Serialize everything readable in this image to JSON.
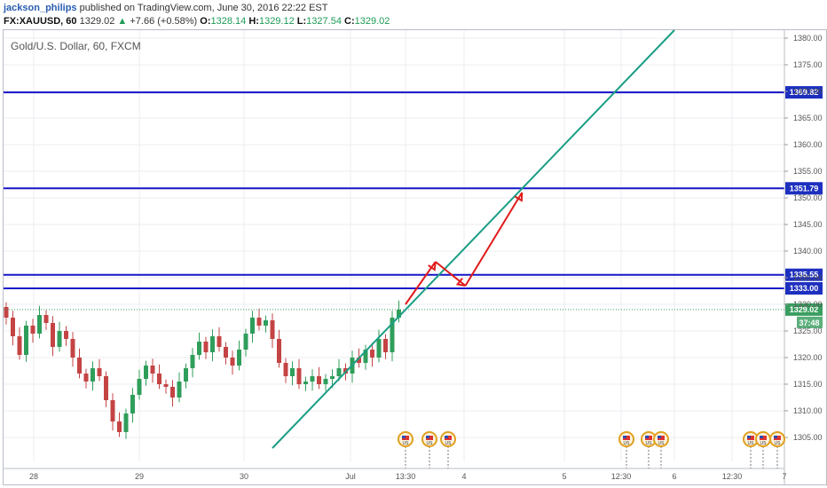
{
  "header": {
    "author": "jackson_philips",
    "published": " published on TradingView.com, June 30, 2016 22:22 EST",
    "symbol": "FX:XAUUSD, 60",
    "price": "1329.02",
    "change": "+7.66 (+0.58%)",
    "o_label": "O:",
    "o_value": "1328.14",
    "h_label": "H:",
    "h_value": "1329.12",
    "l_label": "L:",
    "l_value": "1327.54",
    "c_label": "C:",
    "c_value": "1329.02"
  },
  "colors": {
    "up": "#2f9e5b",
    "down": "#c44444",
    "hline": "#1515c8",
    "trend": "#1a9e85",
    "arrow": "#e01b1b",
    "tag_blue": "#1d2fbf",
    "tag_price": "#3a9e60",
    "grid": "#eceef2"
  },
  "chart_data": {
    "type": "candlestick",
    "title": "Gold/U.S. Dollar, 60, FXCM",
    "ylim": [
      1300.5,
      1381.5
    ],
    "y_ticks": [
      "1305.00",
      "1310.00",
      "1315.00",
      "1320.00",
      "1325.00",
      "1330.00",
      "1335.00",
      "1340.00",
      "1345.00",
      "1350.00",
      "1355.00",
      "1360.00",
      "1365.00",
      "1370.00",
      "1375.00",
      "1380.00"
    ],
    "x_ticks": [
      "28",
      "29",
      "30",
      "Jul",
      "13:30",
      "4",
      "5",
      "12:30",
      "6",
      "12:30",
      "7"
    ],
    "horizontal_levels": [
      {
        "value": 1369.82,
        "label": "1369.82"
      },
      {
        "value": 1351.79,
        "label": "1351.79"
      },
      {
        "value": 1335.55,
        "label": "1335.55"
      },
      {
        "value": 1333.0,
        "label": "1333.00"
      }
    ],
    "current_price": {
      "value": 1329.02,
      "label": "1329.02",
      "countdown": "37:48"
    },
    "trendline": [
      {
        "bar": 40,
        "price": 1303.0
      },
      {
        "bar": 100.4,
        "price": 1381.5
      }
    ],
    "projection_path": [
      {
        "bar": 60,
        "price": 1330.0
      },
      {
        "bar": 64.5,
        "price": 1338.0
      },
      {
        "bar": 69,
        "price": 1333.5
      },
      {
        "bar": 77.5,
        "price": 1351.0
      }
    ],
    "closes": [
      1327.5,
      1324.0,
      1320.5,
      1326.0,
      1324.5,
      1328.0,
      1326.5,
      1322.0,
      1325.0,
      1323.5,
      1320.0,
      1317.0,
      1315.5,
      1318.0,
      1316.5,
      1312.0,
      1308.0,
      1306.0,
      1309.5,
      1313.0,
      1316.0,
      1318.5,
      1317.0,
      1315.0,
      1314.5,
      1312.5,
      1315.5,
      1318.0,
      1320.5,
      1323.0,
      1321.0,
      1324.0,
      1322.0,
      1320.0,
      1318.5,
      1321.5,
      1324.5,
      1327.5,
      1326.0,
      1327.0,
      1323.5,
      1319.0,
      1316.5,
      1318.0,
      1315.0,
      1315.5,
      1316.5,
      1315.0,
      1316.0,
      1316.5,
      1318.0,
      1317.0,
      1320.0,
      1319.0,
      1321.5,
      1320.0,
      1323.5,
      1321.0,
      1327.5,
      1329.0
    ],
    "open0": 1329.5,
    "events": [
      "US",
      "US",
      "US",
      "US",
      "US",
      "US",
      "US",
      "US",
      "US"
    ]
  }
}
